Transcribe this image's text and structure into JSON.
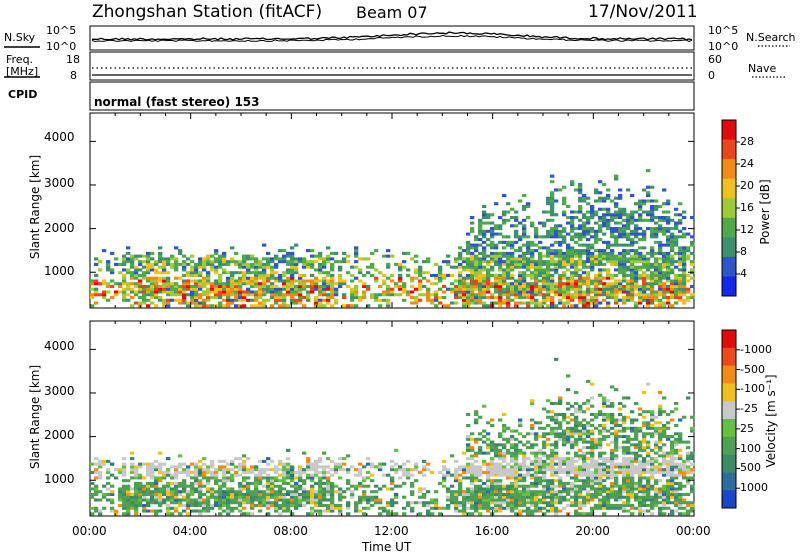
{
  "header": {
    "station": "Zhongshan Station (fitACF)",
    "beam": "Beam 07",
    "date": "17/Nov/2011"
  },
  "noise_panel": {
    "left_label": "N.Sky",
    "right_label": "N.Search",
    "left_top_tick": "10^5",
    "left_bottom_tick": "10^0",
    "right_top_tick": "10^5",
    "right_bottom_tick": "10^0"
  },
  "freq_panel": {
    "left_label_1": "Freq.",
    "left_label_2": "[MHz]",
    "left_top_tick": "18",
    "left_bottom_tick": "8",
    "right_label": "Nave",
    "right_top_tick": "60",
    "right_bottom_tick": "0"
  },
  "cpid_panel": {
    "label": "CPID",
    "mode_text": "normal (fast stereo) 153"
  },
  "chart_data": [
    {
      "type": "heatmap",
      "name": "power",
      "ylabel": "Slant Range [km]",
      "yticks": [
        "1000",
        "2000",
        "3000",
        "4000"
      ],
      "ylim": [
        180,
        4650
      ],
      "colorbar_label": "Power [dB]",
      "colorbar_ticks": [
        "4",
        "8",
        "12",
        "16",
        "20",
        "24",
        "28"
      ],
      "colorbar_colors": [
        "#1428e6",
        "#2e56c6",
        "#3f8f6e",
        "#4fa84a",
        "#9dc93a",
        "#f0c020",
        "#f08a18",
        "#e8471a",
        "#e00a0a"
      ]
    },
    {
      "type": "heatmap",
      "name": "velocity",
      "ylabel": "Slant Range [km]",
      "yticks": [
        "1000",
        "2000",
        "3000",
        "4000"
      ],
      "ylim": [
        180,
        4650
      ],
      "colorbar_label": "Velocity [m s⁻¹]",
      "colorbar_ticks": [
        "1000",
        "500",
        "100",
        "25",
        "-25",
        "-100",
        "-500",
        "-1000"
      ],
      "colorbar_colors": [
        "#1a46c8",
        "#2e6c9e",
        "#3e8a66",
        "#4f9f55",
        "#66c040",
        "#c8c8c8",
        "#f0c020",
        "#f08a18",
        "#e84a1a",
        "#e00a0a"
      ]
    }
  ],
  "x_axis": {
    "ticks": [
      "00:00",
      "04:00",
      "08:00",
      "12:00",
      "16:00",
      "20:00",
      "00:00"
    ],
    "label": "Time UT"
  }
}
